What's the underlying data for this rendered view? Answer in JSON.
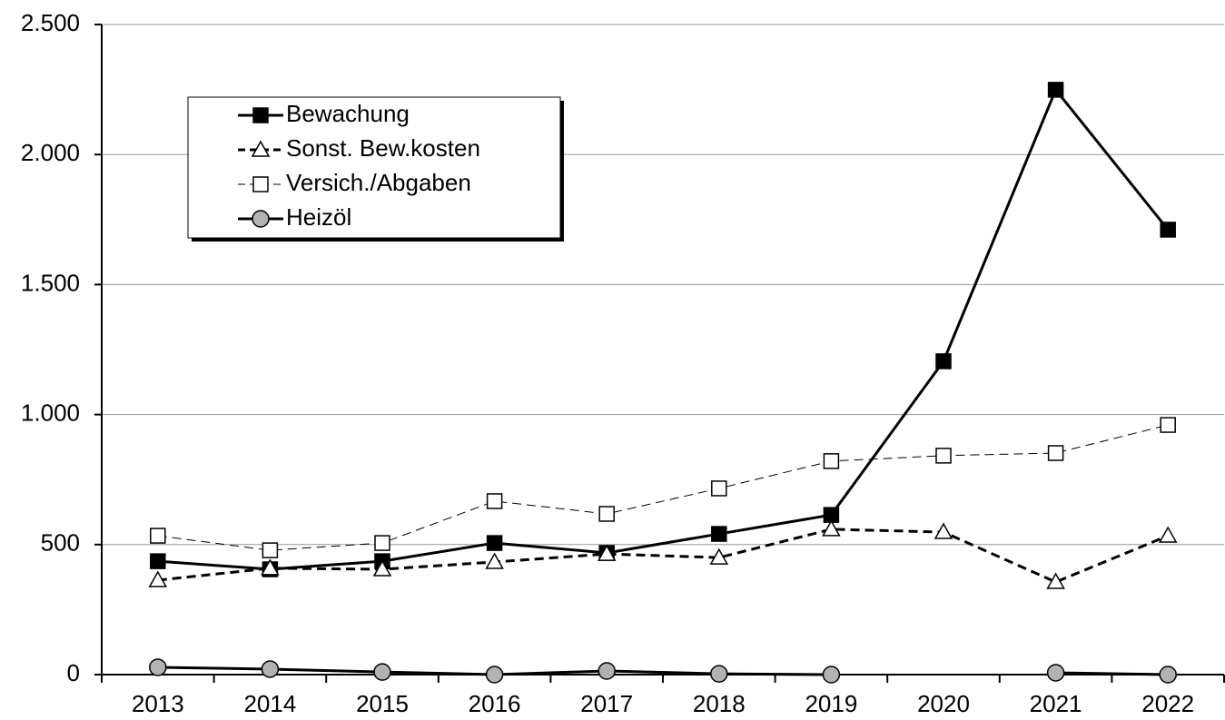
{
  "chart_data": {
    "type": "line",
    "categories": [
      "2013",
      "2014",
      "2015",
      "2016",
      "2017",
      "2018",
      "2019",
      "2020",
      "2021",
      "2022"
    ],
    "series": [
      {
        "name": "Bewachung",
        "color": "#000000",
        "dashed": false,
        "line_width": 3,
        "marker": "square",
        "marker_color": "#000000",
        "values": [
          436,
          405,
          436,
          506,
          468,
          541,
          614,
          1205,
          2249,
          1711
        ]
      },
      {
        "name": "Sonst. Bew.kosten",
        "color": "#000000",
        "dashed": true,
        "line_width": 3,
        "marker": "triangle",
        "marker_color": "#ffffff",
        "values": [
          363,
          409,
          405,
          433,
          464,
          450,
          559,
          548,
          356,
          534
        ]
      },
      {
        "name": "Versich./Abgaben",
        "color": "#000000",
        "dashed": true,
        "line_width": 1,
        "marker": "square",
        "marker_color": "#ffffff",
        "values": [
          534,
          478,
          506,
          667,
          618,
          716,
          821,
          842,
          852,
          960
        ]
      },
      {
        "name": "Heizöl",
        "color": "#000000",
        "dashed": false,
        "line_width": 3,
        "marker": "circle",
        "marker_color": "#b2b2b2",
        "values": [
          28,
          21,
          10,
          0,
          14,
          3,
          0,
          null,
          7,
          0
        ]
      }
    ],
    "ylim": [
      0,
      2500
    ],
    "yticks": [
      0,
      500,
      {
        "value": 1000,
        "label": "1.000"
      },
      {
        "value": 1500,
        "label": "1.500"
      },
      {
        "value": 2000,
        "label": "2.000"
      },
      {
        "value": 2500,
        "label": "2.500"
      }
    ],
    "grid": true,
    "legend": "upper left"
  }
}
